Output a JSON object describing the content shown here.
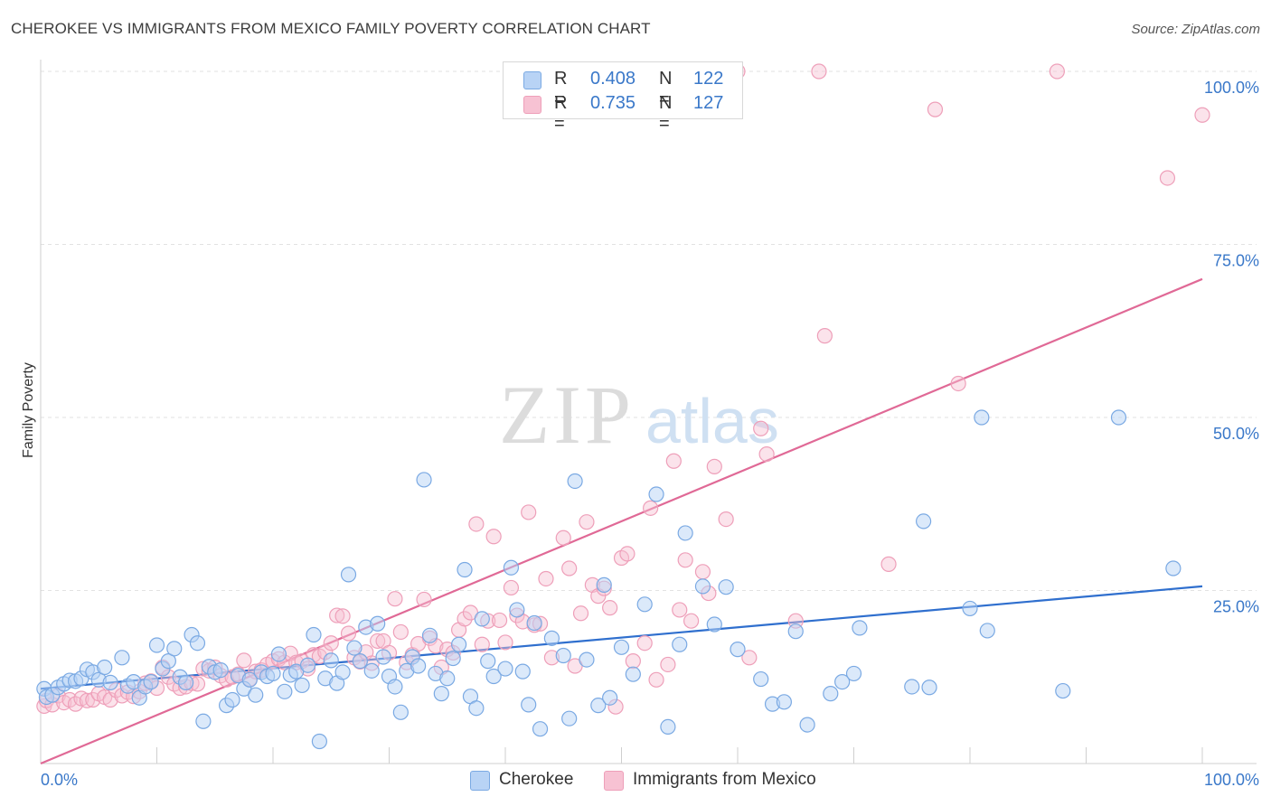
{
  "header": {
    "title": "CHEROKEE VS IMMIGRANTS FROM MEXICO FAMILY POVERTY CORRELATION CHART",
    "source": "Source: ZipAtlas.com"
  },
  "watermark": {
    "zip": "ZIP",
    "atlas": "atlas"
  },
  "legend": {
    "rows": [
      {
        "r_label": "R =",
        "r_value": "0.408",
        "n_label": "N =",
        "n_value": "122"
      },
      {
        "r_label": "R =",
        "r_value": "0.735",
        "n_label": "N =",
        "n_value": "127"
      }
    ]
  },
  "bottom_legend": {
    "series1": "Cherokee",
    "series2": "Immigrants from Mexico"
  },
  "colors": {
    "cherokee_fill": "#b8d3f5",
    "cherokee_stroke": "#7aa9e3",
    "cherokee_line": "#2f6fce",
    "mexico_fill": "#f7c2d3",
    "mexico_stroke": "#ee9fb9",
    "mexico_line": "#e06996",
    "axis_text": "#3a78c9"
  },
  "chart_data": {
    "type": "scatter",
    "title": "CHEROKEE VS IMMIGRANTS FROM MEXICO FAMILY POVERTY CORRELATION CHART",
    "xlabel": "",
    "ylabel": "Family Poverty",
    "xlim": [
      0,
      100
    ],
    "ylim": [
      0,
      100
    ],
    "x_tick_labels": [
      "0.0%",
      "100.0%"
    ],
    "y_tick_labels": [
      "25.0%",
      "50.0%",
      "75.0%",
      "100.0%"
    ],
    "y_ticks": [
      25,
      50,
      75,
      100
    ],
    "grid": true,
    "legend_position": "top-center",
    "series": [
      {
        "name": "Cherokee",
        "r": 0.408,
        "n": 122,
        "trend": {
          "x": [
            0,
            100
          ],
          "y": [
            10.8,
            25.6
          ]
        },
        "points": [
          [
            0.3,
            10.8
          ],
          [
            0.5,
            9.6
          ],
          [
            1,
            9.9
          ],
          [
            1.5,
            11
          ],
          [
            2,
            11.5
          ],
          [
            2.5,
            12
          ],
          [
            3,
            11.9
          ],
          [
            3.5,
            12.3
          ],
          [
            4,
            13.6
          ],
          [
            4.5,
            13.2
          ],
          [
            5,
            12.1
          ],
          [
            5.5,
            13.9
          ],
          [
            6,
            11.7
          ],
          [
            7,
            15.3
          ],
          [
            7.5,
            11.2
          ],
          [
            8,
            11.8
          ],
          [
            8.5,
            9.5
          ],
          [
            9,
            11.1
          ],
          [
            9.5,
            11.8
          ],
          [
            10,
            17.1
          ],
          [
            10.5,
            13.7
          ],
          [
            11,
            14.8
          ],
          [
            11.5,
            16.6
          ],
          [
            12,
            12.5
          ],
          [
            12.5,
            11.7
          ],
          [
            13,
            18.6
          ],
          [
            13.5,
            17.4
          ],
          [
            14,
            6.1
          ],
          [
            14.5,
            14
          ],
          [
            15,
            13.2
          ],
          [
            15.5,
            13.5
          ],
          [
            16,
            8.4
          ],
          [
            16.5,
            9.2
          ],
          [
            17,
            12.7
          ],
          [
            17.5,
            10.8
          ],
          [
            18,
            12.1
          ],
          [
            18.5,
            9.9
          ],
          [
            19,
            13.2
          ],
          [
            19.5,
            12.6
          ],
          [
            20,
            13
          ],
          [
            20.5,
            15.8
          ],
          [
            21,
            10.4
          ],
          [
            21.5,
            12.8
          ],
          [
            22,
            13.3
          ],
          [
            22.5,
            11.3
          ],
          [
            23,
            14.2
          ],
          [
            23.5,
            18.6
          ],
          [
            24,
            3.2
          ],
          [
            24.5,
            12.3
          ],
          [
            25,
            14.9
          ],
          [
            25.5,
            11.6
          ],
          [
            26,
            13.2
          ],
          [
            26.5,
            27.3
          ],
          [
            27,
            16.7
          ],
          [
            27.5,
            14.8
          ],
          [
            28,
            19.7
          ],
          [
            28.5,
            13.4
          ],
          [
            29,
            20.2
          ],
          [
            29.5,
            15.4
          ],
          [
            30,
            12.6
          ],
          [
            30.5,
            11.1
          ],
          [
            31,
            7.4
          ],
          [
            31.5,
            13.4
          ],
          [
            32,
            15.4
          ],
          [
            32.5,
            14.1
          ],
          [
            33,
            41
          ],
          [
            33.5,
            18.5
          ],
          [
            34,
            13
          ],
          [
            34.5,
            10.1
          ],
          [
            35,
            12.3
          ],
          [
            35.5,
            15.2
          ],
          [
            36,
            17.2
          ],
          [
            36.5,
            28
          ],
          [
            37,
            9.7
          ],
          [
            37.5,
            8
          ],
          [
            38,
            20.9
          ],
          [
            38.5,
            14.8
          ],
          [
            39,
            12.6
          ],
          [
            40,
            13.7
          ],
          [
            40.5,
            28.3
          ],
          [
            41,
            22.2
          ],
          [
            41.5,
            13.3
          ],
          [
            42,
            8.5
          ],
          [
            42.5,
            20.3
          ],
          [
            43,
            5
          ],
          [
            44,
            18.1
          ],
          [
            45,
            15.6
          ],
          [
            45.5,
            6.5
          ],
          [
            46,
            40.8
          ],
          [
            47,
            15
          ],
          [
            48,
            8.4
          ],
          [
            48.5,
            25.8
          ],
          [
            49,
            9.5
          ],
          [
            50,
            16.8
          ],
          [
            51,
            12.9
          ],
          [
            52,
            23
          ],
          [
            53,
            38.9
          ],
          [
            54,
            5.3
          ],
          [
            55,
            17.2
          ],
          [
            55.5,
            33.3
          ],
          [
            57,
            25.6
          ],
          [
            58,
            20.1
          ],
          [
            59,
            25.5
          ],
          [
            60,
            16.5
          ],
          [
            62,
            12.2
          ],
          [
            63,
            8.6
          ],
          [
            64,
            8.9
          ],
          [
            65,
            19.1
          ],
          [
            66,
            5.6
          ],
          [
            68,
            10.1
          ],
          [
            69,
            11.8
          ],
          [
            70,
            13
          ],
          [
            70.5,
            19.6
          ],
          [
            75,
            11.1
          ],
          [
            76,
            35
          ],
          [
            76.5,
            11
          ],
          [
            80,
            22.4
          ],
          [
            81,
            50
          ],
          [
            81.5,
            19.2
          ],
          [
            88,
            10.5
          ],
          [
            92.8,
            50
          ],
          [
            97.5,
            28.2
          ]
        ]
      },
      {
        "name": "Immigrants from Mexico",
        "r": 0.735,
        "n": 127,
        "trend": {
          "x": [
            0,
            100
          ],
          "y": [
            0,
            70
          ]
        },
        "points": [
          [
            0.3,
            8.3
          ],
          [
            0.5,
            9.1
          ],
          [
            1,
            8.5
          ],
          [
            1.5,
            9.8
          ],
          [
            2,
            8.8
          ],
          [
            2.5,
            9.2
          ],
          [
            3,
            8.6
          ],
          [
            3.5,
            9.4
          ],
          [
            4,
            9.1
          ],
          [
            4.5,
            9.2
          ],
          [
            5,
            10.1
          ],
          [
            5.5,
            9.6
          ],
          [
            6,
            9.2
          ],
          [
            6.5,
            10.6
          ],
          [
            7,
            9.8
          ],
          [
            7.5,
            10.3
          ],
          [
            8,
            9.7
          ],
          [
            8.5,
            10.4
          ],
          [
            9,
            11.6
          ],
          [
            9.5,
            11.9
          ],
          [
            10,
            10.9
          ],
          [
            10.5,
            13.9
          ],
          [
            11,
            12.5
          ],
          [
            11.5,
            11.5
          ],
          [
            12,
            10.9
          ],
          [
            12.5,
            11.1
          ],
          [
            13,
            11.6
          ],
          [
            13.5,
            11.5
          ],
          [
            14,
            13.7
          ],
          [
            14.5,
            13.4
          ],
          [
            15,
            13.9
          ],
          [
            15.5,
            12.7
          ],
          [
            16,
            12.1
          ],
          [
            16.5,
            12.5
          ],
          [
            17,
            12.9
          ],
          [
            17.5,
            14.9
          ],
          [
            18,
            12.2
          ],
          [
            18.5,
            13.3
          ],
          [
            19,
            13.5
          ],
          [
            19.5,
            14.3
          ],
          [
            20,
            14.8
          ],
          [
            20.5,
            15.1
          ],
          [
            21,
            14.6
          ],
          [
            21.5,
            15.9
          ],
          [
            22,
            14.6
          ],
          [
            22.5,
            14.8
          ],
          [
            23,
            13.7
          ],
          [
            23.5,
            15.7
          ],
          [
            24,
            15.5
          ],
          [
            24.5,
            16.1
          ],
          [
            25,
            17.4
          ],
          [
            25.5,
            21.4
          ],
          [
            26,
            21.3
          ],
          [
            26.5,
            18.8
          ],
          [
            27,
            15.3
          ],
          [
            27.5,
            14.7
          ],
          [
            28,
            16.1
          ],
          [
            28.5,
            14.5
          ],
          [
            29,
            17.7
          ],
          [
            29.5,
            17.7
          ],
          [
            30,
            16
          ],
          [
            30.5,
            23.8
          ],
          [
            31,
            19
          ],
          [
            31.5,
            14.6
          ],
          [
            32,
            15.7
          ],
          [
            32.5,
            17.3
          ],
          [
            33,
            23.7
          ],
          [
            33.5,
            18.1
          ],
          [
            34,
            17
          ],
          [
            34.5,
            13.9
          ],
          [
            35,
            16.5
          ],
          [
            35.5,
            16
          ],
          [
            36,
            19.3
          ],
          [
            36.5,
            20.9
          ],
          [
            37,
            21.8
          ],
          [
            37.5,
            34.6
          ],
          [
            38,
            17.2
          ],
          [
            38.5,
            20.6
          ],
          [
            39,
            32.8
          ],
          [
            39.5,
            20.7
          ],
          [
            40,
            17.5
          ],
          [
            40.5,
            25.4
          ],
          [
            41,
            21.4
          ],
          [
            41.5,
            20.5
          ],
          [
            42,
            36.3
          ],
          [
            42.5,
            20
          ],
          [
            43,
            20.2
          ],
          [
            43.5,
            26.7
          ],
          [
            44,
            15.3
          ],
          [
            45,
            32.6
          ],
          [
            45.5,
            28.2
          ],
          [
            46,
            14.1
          ],
          [
            46.5,
            21.7
          ],
          [
            47,
            34.9
          ],
          [
            47.5,
            25.8
          ],
          [
            48,
            24.2
          ],
          [
            48.5,
            25.3
          ],
          [
            49,
            22.5
          ],
          [
            49.5,
            8.2
          ],
          [
            50,
            29.7
          ],
          [
            50.5,
            30.3
          ],
          [
            51,
            14.8
          ],
          [
            52,
            17.4
          ],
          [
            52.5,
            36.9
          ],
          [
            53,
            12.1
          ],
          [
            54,
            14.3
          ],
          [
            54.5,
            43.7
          ],
          [
            55,
            22.2
          ],
          [
            55.5,
            29.4
          ],
          [
            56,
            20.6
          ],
          [
            57,
            27.7
          ],
          [
            57.5,
            24.6
          ],
          [
            58,
            42.9
          ],
          [
            59,
            35.3
          ],
          [
            60,
            100
          ],
          [
            61,
            15.3
          ],
          [
            62,
            48.4
          ],
          [
            62.5,
            44.7
          ],
          [
            65,
            20.6
          ],
          [
            67,
            100
          ],
          [
            67.5,
            61.8
          ],
          [
            73,
            28.8
          ],
          [
            77,
            94.5
          ],
          [
            79,
            54.9
          ],
          [
            87.5,
            100
          ],
          [
            97,
            84.6
          ],
          [
            100,
            93.7
          ]
        ]
      }
    ]
  }
}
